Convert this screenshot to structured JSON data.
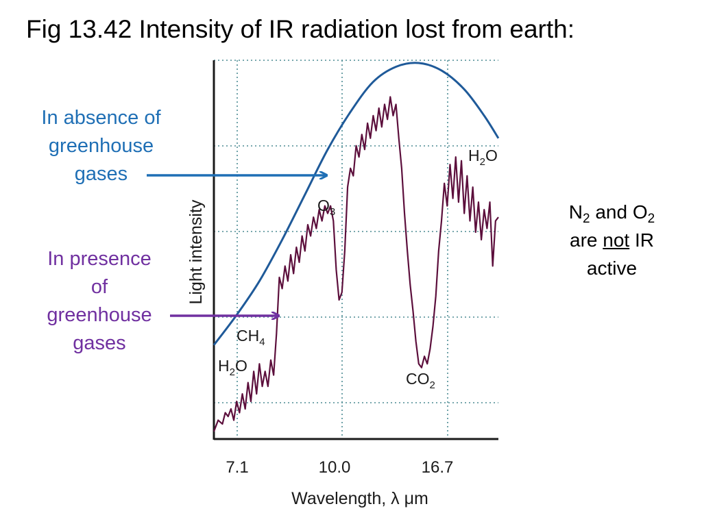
{
  "slide": {
    "title": "Fig 13.42  Intensity of IR radiation lost from earth:"
  },
  "callouts": {
    "absence": {
      "lines": [
        "In absence of",
        "greenhouse",
        "gases"
      ],
      "color": "#1f6fb5"
    },
    "presence": {
      "lines": [
        "In presence",
        "of",
        "greenhouse",
        "gases"
      ],
      "color": "#7030a0"
    }
  },
  "note": {
    "n2": "N",
    "n2_sub": "2",
    "and": " and O",
    "o2_sub": "2",
    "are": "are ",
    "not": "not",
    "ir": " IR",
    "active": "active"
  },
  "chart_data": {
    "type": "line",
    "xlabel": "Wavelength, λ μm",
    "ylabel": "Light intensity",
    "x_ticks": [
      "7.1",
      "10.0",
      "16.7"
    ],
    "grid": true,
    "x_axis_fraction": true,
    "series": [
      {
        "color": "#1f5a99",
        "values": [
          [
            0.0,
            0.25
          ],
          [
            0.08,
            0.33
          ],
          [
            0.16,
            0.42
          ],
          [
            0.24,
            0.53
          ],
          [
            0.32,
            0.65
          ],
          [
            0.4,
            0.77
          ],
          [
            0.48,
            0.87
          ],
          [
            0.56,
            0.95
          ],
          [
            0.64,
            0.99
          ],
          [
            0.72,
            1.0
          ],
          [
            0.8,
            0.98
          ],
          [
            0.88,
            0.93
          ],
          [
            0.95,
            0.86
          ],
          [
            1.0,
            0.8
          ]
        ]
      },
      {
        "color": "#5c0f3c",
        "values": [
          [
            0.0,
            0.02
          ],
          [
            0.015,
            0.05
          ],
          [
            0.03,
            0.04
          ],
          [
            0.04,
            0.07
          ],
          [
            0.05,
            0.06
          ],
          [
            0.06,
            0.08
          ],
          [
            0.07,
            0.05
          ],
          [
            0.08,
            0.1
          ],
          [
            0.09,
            0.07
          ],
          [
            0.1,
            0.12
          ],
          [
            0.11,
            0.08
          ],
          [
            0.12,
            0.15
          ],
          [
            0.13,
            0.1
          ],
          [
            0.14,
            0.18
          ],
          [
            0.15,
            0.12
          ],
          [
            0.16,
            0.2
          ],
          [
            0.17,
            0.14
          ],
          [
            0.18,
            0.18
          ],
          [
            0.19,
            0.14
          ],
          [
            0.2,
            0.21
          ],
          [
            0.21,
            0.17
          ],
          [
            0.22,
            0.28
          ],
          [
            0.23,
            0.43
          ],
          [
            0.24,
            0.4
          ],
          [
            0.25,
            0.46
          ],
          [
            0.26,
            0.42
          ],
          [
            0.27,
            0.49
          ],
          [
            0.28,
            0.44
          ],
          [
            0.29,
            0.51
          ],
          [
            0.3,
            0.47
          ],
          [
            0.31,
            0.54
          ],
          [
            0.32,
            0.5
          ],
          [
            0.33,
            0.57
          ],
          [
            0.34,
            0.54
          ],
          [
            0.35,
            0.59
          ],
          [
            0.36,
            0.56
          ],
          [
            0.37,
            0.61
          ],
          [
            0.38,
            0.58
          ],
          [
            0.39,
            0.62
          ],
          [
            0.4,
            0.6
          ],
          [
            0.41,
            0.62
          ],
          [
            0.42,
            0.58
          ],
          [
            0.43,
            0.45
          ],
          [
            0.44,
            0.37
          ],
          [
            0.45,
            0.39
          ],
          [
            0.46,
            0.5
          ],
          [
            0.47,
            0.67
          ],
          [
            0.48,
            0.72
          ],
          [
            0.49,
            0.7
          ],
          [
            0.5,
            0.78
          ],
          [
            0.51,
            0.75
          ],
          [
            0.52,
            0.81
          ],
          [
            0.53,
            0.77
          ],
          [
            0.54,
            0.84
          ],
          [
            0.55,
            0.8
          ],
          [
            0.56,
            0.86
          ],
          [
            0.57,
            0.82
          ],
          [
            0.58,
            0.88
          ],
          [
            0.59,
            0.83
          ],
          [
            0.6,
            0.89
          ],
          [
            0.61,
            0.85
          ],
          [
            0.62,
            0.91
          ],
          [
            0.63,
            0.86
          ],
          [
            0.64,
            0.89
          ],
          [
            0.65,
            0.8
          ],
          [
            0.66,
            0.72
          ],
          [
            0.67,
            0.6
          ],
          [
            0.68,
            0.5
          ],
          [
            0.69,
            0.41
          ],
          [
            0.7,
            0.34
          ],
          [
            0.71,
            0.26
          ],
          [
            0.72,
            0.2
          ],
          [
            0.73,
            0.19
          ],
          [
            0.74,
            0.22
          ],
          [
            0.75,
            0.2
          ],
          [
            0.76,
            0.24
          ],
          [
            0.77,
            0.3
          ],
          [
            0.78,
            0.38
          ],
          [
            0.79,
            0.5
          ],
          [
            0.8,
            0.58
          ],
          [
            0.81,
            0.68
          ],
          [
            0.82,
            0.62
          ],
          [
            0.83,
            0.73
          ],
          [
            0.84,
            0.64
          ],
          [
            0.85,
            0.75
          ],
          [
            0.86,
            0.63
          ],
          [
            0.87,
            0.74
          ],
          [
            0.88,
            0.6
          ],
          [
            0.89,
            0.7
          ],
          [
            0.9,
            0.58
          ],
          [
            0.91,
            0.67
          ],
          [
            0.92,
            0.55
          ],
          [
            0.93,
            0.63
          ],
          [
            0.94,
            0.53
          ],
          [
            0.95,
            0.61
          ],
          [
            0.96,
            0.56
          ],
          [
            0.97,
            0.63
          ],
          [
            0.98,
            0.46
          ],
          [
            0.99,
            0.58
          ],
          [
            1.0,
            0.59
          ]
        ]
      }
    ],
    "annotations": [
      {
        "id": "h2o-left",
        "text": "H",
        "sub": "2",
        "rest": "O"
      },
      {
        "id": "ch4",
        "text": "CH",
        "sub": "4",
        "rest": ""
      },
      {
        "id": "o3",
        "text": "O",
        "sub": "3",
        "rest": ""
      },
      {
        "id": "co2",
        "text": "CO",
        "sub": "2",
        "rest": ""
      },
      {
        "id": "h2o-right",
        "text": "H",
        "sub": "2",
        "rest": "O"
      }
    ]
  }
}
